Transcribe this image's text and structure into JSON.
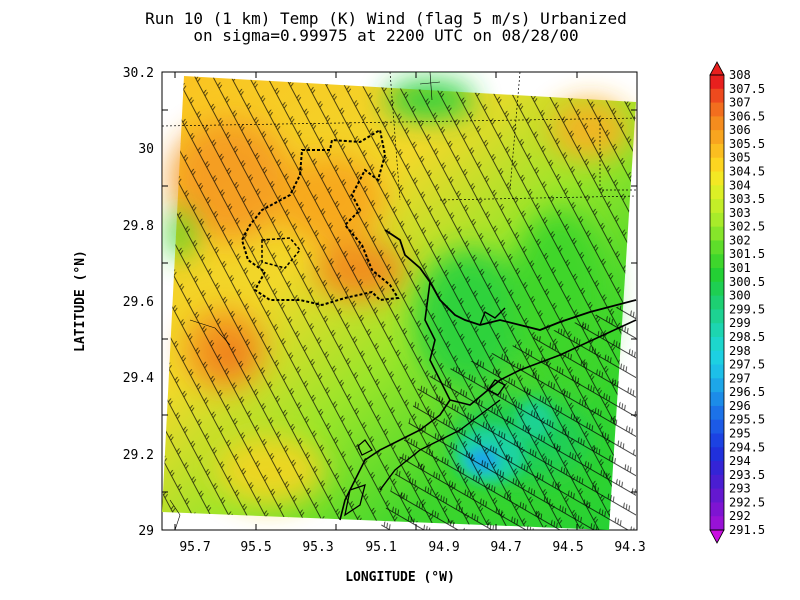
{
  "title_line1": "Run 10 (1 km) Temp (K) Wind (flag 5 m/s) Urbanized",
  "title_line2": "on sigma=0.99975 at 2200 UTC on 08/28/00",
  "xlabel": "LONGITUDE (°W)",
  "ylabel": "LATITUDE (°N)",
  "x_ticks": [
    "95.7",
    "95.5",
    "95.3",
    "95.1",
    "94.9",
    "94.7",
    "94.5",
    "94.3"
  ],
  "y_ticks": [
    "30.2",
    "30",
    "29.8",
    "29.6",
    "29.4",
    "29.2",
    "29"
  ],
  "colorbar": {
    "labels": [
      "308",
      "307.5",
      "307",
      "306.5",
      "306",
      "305.5",
      "305",
      "304.5",
      "304",
      "303.5",
      "303",
      "302.5",
      "302",
      "301.5",
      "301",
      "300.5",
      "300",
      "299.5",
      "299",
      "298.5",
      "298",
      "297.5",
      "297",
      "296.5",
      "296",
      "295.5",
      "295",
      "294.5",
      "294",
      "293.5",
      "293",
      "292.5",
      "292",
      "291.5"
    ],
    "colors": [
      "#e8201e",
      "#ee4a1e",
      "#f26e1e",
      "#f58c1e",
      "#f8a51f",
      "#fbbe20",
      "#fdd520",
      "#f3e824",
      "#dcef26",
      "#c3ee28",
      "#a8eb2a",
      "#86e52a",
      "#5edd2a",
      "#3ed62c",
      "#23d034",
      "#1ecf52",
      "#1dd072",
      "#1dd292",
      "#1dd5b0",
      "#1dd6cc",
      "#1dd0e2",
      "#1dbfe8",
      "#1da6e8",
      "#1c8ce8",
      "#1c72e8",
      "#1c5ae6",
      "#1c42e2",
      "#2030dc",
      "#3424d6",
      "#4a1ed2",
      "#6418d0",
      "#7e14d2",
      "#9812d6",
      "#b610dc"
    ]
  },
  "chart_data": {
    "type": "heatmap",
    "variable": "Temp (K)",
    "xlim": [
      95.8,
      94.3
    ],
    "ylim": [
      29.0,
      30.2
    ],
    "color_range": [
      291.5,
      308
    ],
    "regions": [
      {
        "lon": 95.5,
        "lat": 29.8,
        "temp": 306
      },
      {
        "lon": 95.6,
        "lat": 29.45,
        "temp": 307
      },
      {
        "lon": 95.35,
        "lat": 29.3,
        "temp": 304
      },
      {
        "lon": 94.9,
        "lat": 29.6,
        "temp": 302
      },
      {
        "lon": 94.8,
        "lat": 29.35,
        "temp": 301.5
      },
      {
        "lon": 94.78,
        "lat": 29.18,
        "temp": 297.5
      },
      {
        "lon": 94.6,
        "lat": 30.1,
        "temp": 301
      },
      {
        "lon": 94.45,
        "lat": 29.5,
        "temp": 301.5
      }
    ]
  }
}
